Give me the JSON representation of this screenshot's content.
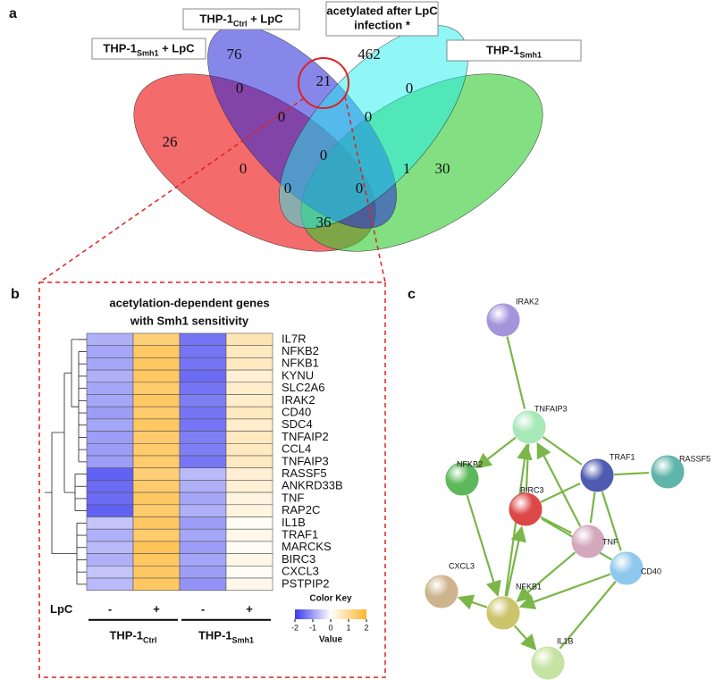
{
  "venn": {
    "panel": "a",
    "sets": [
      {
        "text": "THP-1",
        "sub": "Smh1",
        "after": " + LpC"
      },
      {
        "text": "THP-1",
        "sub": "Ctrl",
        "after": " + LpC"
      },
      {
        "lines": [
          "acetylated after LpC",
          "infection *"
        ]
      },
      {
        "text": "THP-1",
        "sub": "Smh1"
      }
    ],
    "counts": [
      26,
      76,
      462,
      30,
      0,
      21,
      0,
      0,
      0,
      0,
      0,
      1,
      0,
      0,
      36
    ]
  },
  "heatmap": {
    "panel": "b",
    "title_lines": [
      "acetylation-dependent genes",
      "with Smh1 sensitivity"
    ],
    "genes": [
      "IL7R",
      "NFKB2",
      "NFKB1",
      "KYNU",
      "SLC2A6",
      "IRAK2",
      "CD40",
      "SDC4",
      "TNFAIP2",
      "CCL4",
      "TNFAIP3",
      "RASSF5",
      "ANKRD33B",
      "TNF",
      "RAP2C",
      "IL1B",
      "TRAF1",
      "MARCKS",
      "BIRC3",
      "CXCL3",
      "PSTPIP2"
    ],
    "values": [
      [
        -0.8,
        1.3,
        -1.4,
        0.7
      ],
      [
        -0.9,
        1.5,
        -1.4,
        0.6
      ],
      [
        -0.9,
        1.5,
        -1.4,
        0.6
      ],
      [
        -0.8,
        1.5,
        -1.5,
        0.4
      ],
      [
        -0.9,
        1.4,
        -1.4,
        0.5
      ],
      [
        -0.9,
        1.5,
        -1.3,
        0.5
      ],
      [
        -1.0,
        1.4,
        -1.4,
        0.6
      ],
      [
        -0.9,
        1.5,
        -1.4,
        0.5
      ],
      [
        -1.0,
        1.4,
        -1.3,
        0.6
      ],
      [
        -1.0,
        1.4,
        -1.3,
        0.6
      ],
      [
        -1.0,
        1.4,
        -1.4,
        0.6
      ],
      [
        -1.6,
        1.3,
        -0.7,
        0.4
      ],
      [
        -1.5,
        1.4,
        -0.8,
        0.4
      ],
      [
        -1.5,
        1.5,
        -0.9,
        0.3
      ],
      [
        -1.6,
        1.4,
        -0.8,
        0.3
      ],
      [
        -0.6,
        1.5,
        -1.0,
        0.1
      ],
      [
        -0.8,
        1.4,
        -0.9,
        0.2
      ],
      [
        -0.7,
        1.6,
        -1.0,
        0.1
      ],
      [
        -0.8,
        1.5,
        -0.9,
        0.2
      ],
      [
        -0.6,
        1.5,
        -1.0,
        0.1
      ],
      [
        -0.7,
        1.5,
        -1.1,
        0.2
      ]
    ],
    "row_label": "LpC",
    "signs": [
      "-",
      "+",
      "-",
      "+"
    ],
    "groups": [
      {
        "text": "THP-1",
        "sub": "Ctrl"
      },
      {
        "text": "THP-1",
        "sub": "Smh1"
      }
    ],
    "color_key": {
      "title": "Color Key",
      "label": "Value",
      "range": [
        -2,
        2
      ],
      "ticks": [
        -2,
        -1,
        0,
        1,
        2
      ],
      "low_color": "#3a3af0",
      "mid_color": "#ffffff",
      "high_color": "#ffb52e"
    }
  },
  "network": {
    "panel": "c",
    "nodes": [
      {
        "label": "IRAK2",
        "color": "#a394dc"
      },
      {
        "label": "TNFAIP3",
        "color": "#a6e8b8"
      },
      {
        "label": "TRAF1",
        "color": "#4f5bb0"
      },
      {
        "label": "RASSF5",
        "color": "#5fb5aa"
      },
      {
        "label": "NFKB2",
        "color": "#5cb85a"
      },
      {
        "label": "BIRC3",
        "color": "#dc4848"
      },
      {
        "label": "TNF",
        "color": "#d4a8bc"
      },
      {
        "label": "CXCL3",
        "color": "#cdb48c"
      },
      {
        "label": "NFKB1",
        "color": "#cbc46a"
      },
      {
        "label": "CD40",
        "color": "#8ec8ec"
      },
      {
        "label": "IL1B",
        "color": "#c5e3a2"
      }
    ]
  }
}
